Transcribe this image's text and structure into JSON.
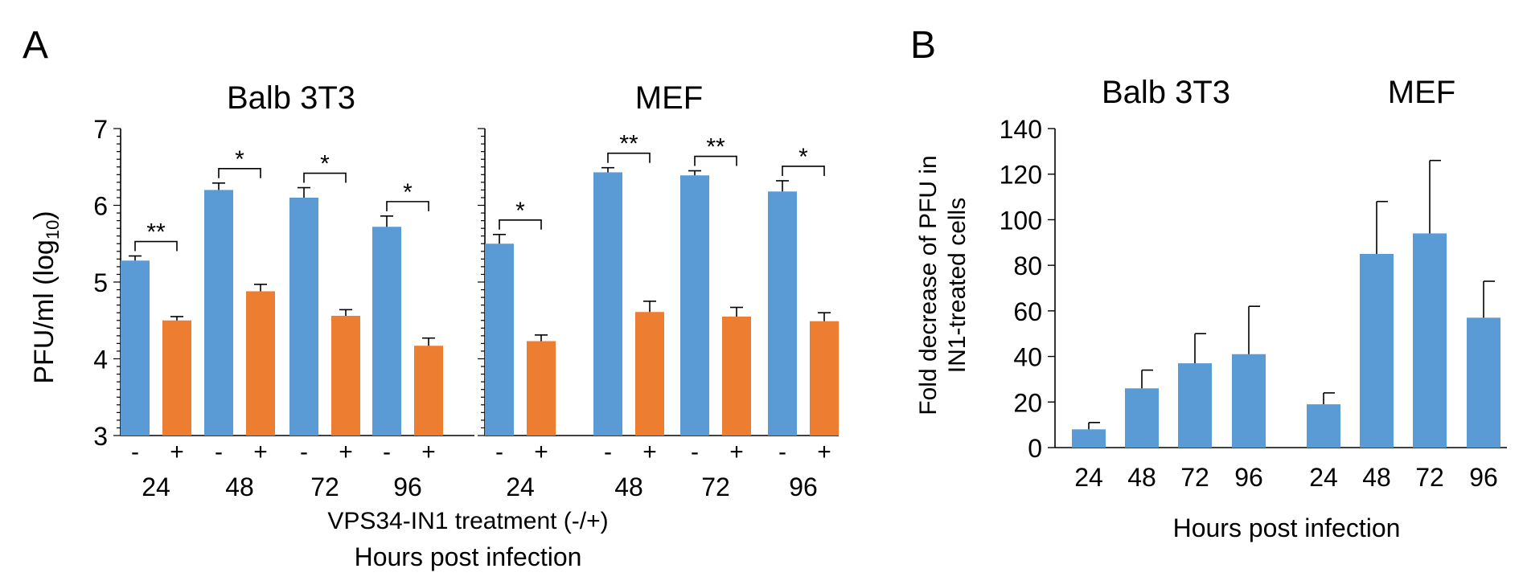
{
  "panel_a": {
    "letter": "A",
    "ylabel_main": "PFU/ml (log",
    "ylabel_sub": "10",
    "ylabel_close": ")",
    "xlabel_line1": "VPS34-IN1 treatment (-/+)",
    "xlabel_line2": "Hours post infection",
    "sign_minus": "-",
    "sign_plus": "+",
    "y_ticks": [
      "3",
      "4",
      "5",
      "6",
      "7"
    ]
  },
  "panel_b": {
    "letter": "B",
    "ylabel_line1": "Fold decrease of PFU in",
    "ylabel_line2": "IN1-treated cells",
    "xlabel": "Hours post infection",
    "y_ticks": [
      "0",
      "20",
      "40",
      "60",
      "80",
      "100",
      "120",
      "140"
    ]
  },
  "colors": {
    "untreated": "#5B9BD5",
    "treated": "#ED7D31"
  },
  "chart_data": [
    {
      "type": "bar",
      "panel": "A",
      "title": "Balb 3T3",
      "categories": [
        "24",
        "48",
        "72",
        "96"
      ],
      "ylim": [
        3,
        7
      ],
      "series": [
        {
          "color": "#5B9BD5",
          "values": [
            5.28,
            6.2,
            6.1,
            5.72
          ],
          "errors": [
            0.06,
            0.09,
            0.13,
            0.14
          ]
        },
        {
          "color": "#ED7D31",
          "values": [
            4.5,
            4.88,
            4.56,
            4.17
          ],
          "errors": [
            0.05,
            0.09,
            0.08,
            0.1
          ]
        }
      ],
      "significance": [
        "**",
        "*",
        "*",
        "*"
      ]
    },
    {
      "type": "bar",
      "panel": "A",
      "title": "MEF",
      "categories": [
        "24",
        "48",
        "72",
        "96"
      ],
      "ylim": [
        3,
        7
      ],
      "series": [
        {
          "color": "#5B9BD5",
          "values": [
            5.5,
            6.43,
            6.39,
            6.18
          ],
          "errors": [
            0.12,
            0.06,
            0.06,
            0.14
          ]
        },
        {
          "color": "#ED7D31",
          "values": [
            4.23,
            4.61,
            4.55,
            4.49
          ],
          "errors": [
            0.08,
            0.14,
            0.12,
            0.11
          ]
        }
      ],
      "significance": [
        "*",
        "**",
        "**",
        "*"
      ]
    },
    {
      "type": "bar",
      "panel": "B",
      "ylim": [
        0,
        140
      ],
      "groups": [
        {
          "title": "Balb 3T3",
          "categories": [
            "24",
            "48",
            "72",
            "96"
          ],
          "values": [
            8,
            26,
            37,
            41
          ],
          "errors": [
            3,
            8,
            13,
            21
          ]
        },
        {
          "title": "MEF",
          "categories": [
            "24",
            "48",
            "72",
            "96"
          ],
          "values": [
            19,
            85,
            94,
            57
          ],
          "errors": [
            5,
            23,
            32,
            16
          ]
        }
      ]
    }
  ]
}
